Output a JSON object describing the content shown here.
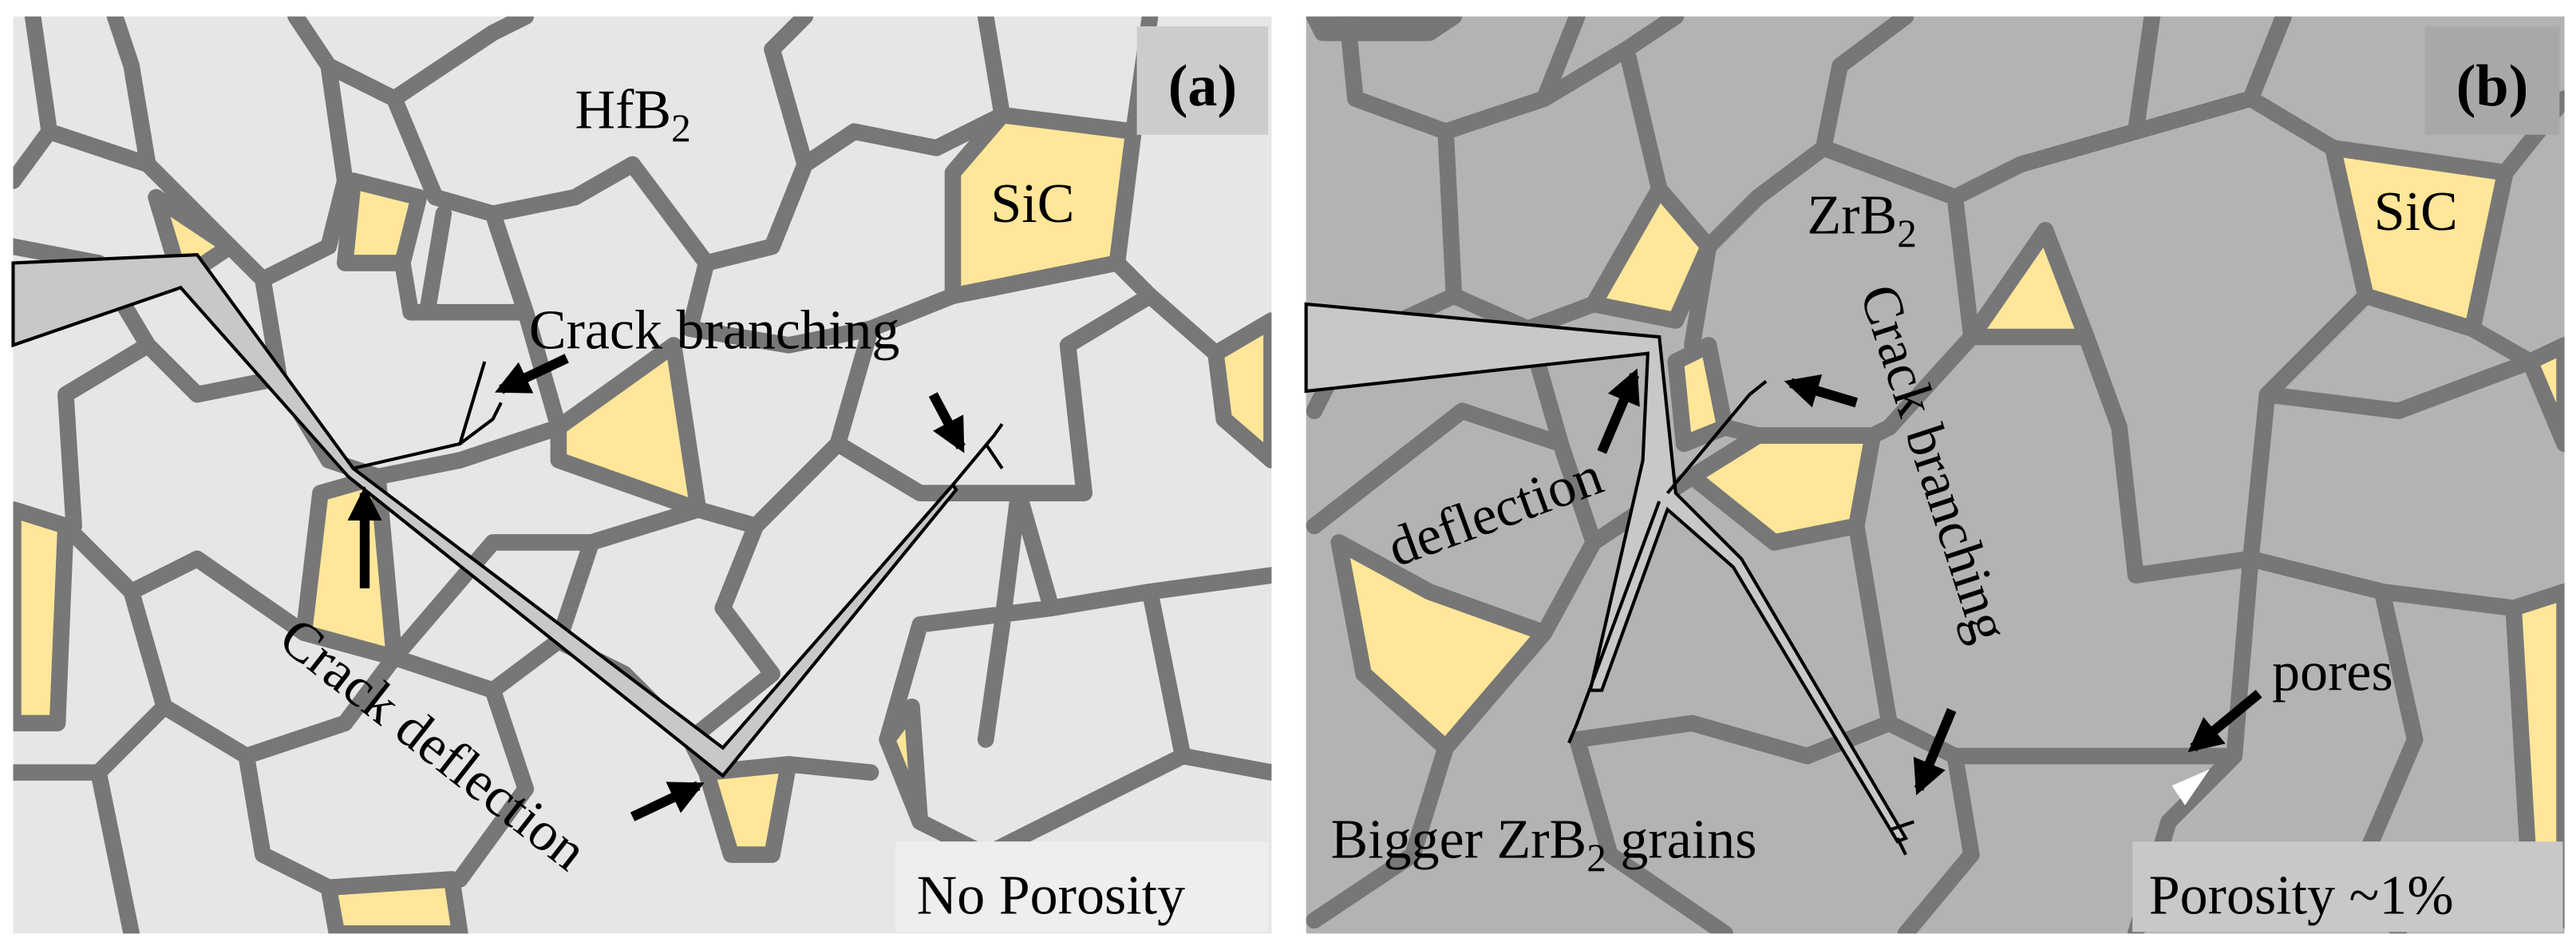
{
  "panels": [
    {
      "label": "(a)",
      "matrix": {
        "text": "HfB",
        "sub": "2"
      },
      "sic": "SiC",
      "annotations": [
        "Crack branching",
        "Crack deflection"
      ],
      "porosity": "No Porosity"
    },
    {
      "label": "(b)",
      "matrix": {
        "text": "ZrB",
        "sub": "2"
      },
      "sic": "SiC",
      "annotations": [
        "Crack branching",
        "deflection",
        "pores"
      ],
      "grains": {
        "pre": "Bigger ZrB",
        "sub": "2",
        "post": " grains"
      },
      "porosity": "Porosity ~1%"
    }
  ]
}
